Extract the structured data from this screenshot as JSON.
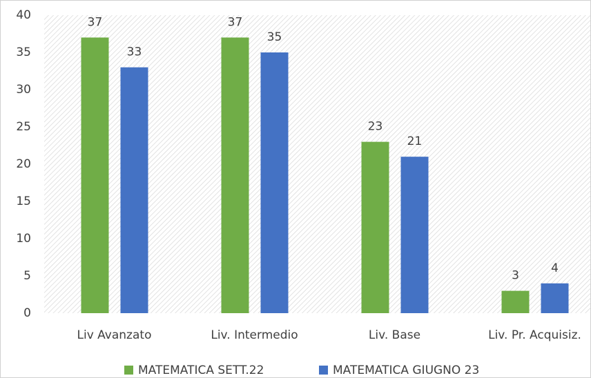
{
  "chart_data": {
    "type": "bar",
    "categories": [
      "Liv Avanzato",
      "Liv. Intermedio",
      "Liv. Base",
      "Liv. Pr. Acquisiz."
    ],
    "series": [
      {
        "name": "MATEMATICA SETT.22",
        "color": "#70ad47",
        "values": [
          37,
          37,
          23,
          3
        ]
      },
      {
        "name": "MATEMATICA GIUGNO 23",
        "color": "#4472c4",
        "values": [
          33,
          35,
          21,
          4
        ]
      }
    ],
    "ylim": [
      0,
      40
    ],
    "yticks": [
      0,
      5,
      10,
      15,
      20,
      25,
      30,
      35,
      40
    ],
    "legend": "bottom"
  }
}
